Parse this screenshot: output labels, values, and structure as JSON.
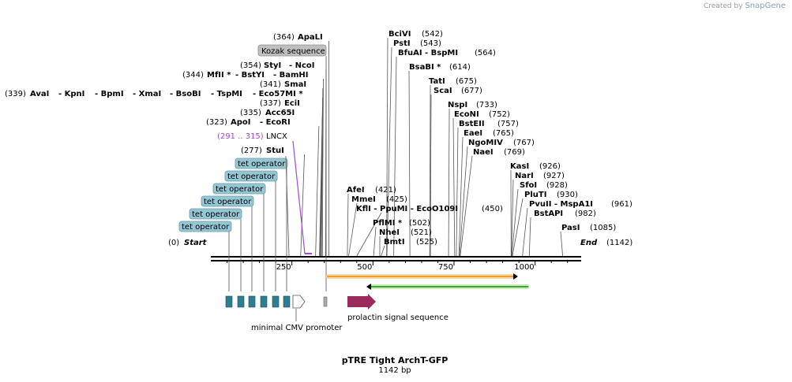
{
  "brand": {
    "prefix": "Created by",
    "name": "SnapGene"
  },
  "map": {
    "name": "pTRE Tight ArchT-GFP",
    "length_label": "1142 bp",
    "ruler": [
      {
        "label": "250",
        "pos": 250
      },
      {
        "label": "500",
        "pos": 500
      },
      {
        "label": "750",
        "pos": 750
      },
      {
        "label": "1000",
        "pos": 1000
      }
    ],
    "start_label": "Start",
    "start_pos": "(0)",
    "end_label": "End",
    "end_pos": "(1142)"
  },
  "sites_left": [
    {
      "row": 0,
      "pos": "(364)",
      "names": [
        "ApaLI"
      ],
      "bp": 364
    },
    {
      "row": 2,
      "pos": "(354)",
      "names": [
        "StyI",
        "- NcoI"
      ],
      "bp": 354
    },
    {
      "row": 3,
      "pos": "(344)",
      "names": [
        "MfII *",
        "- BstYI",
        "- BamHI"
      ],
      "bp": 344
    },
    {
      "row": 4,
      "pos": "(341)",
      "names": [
        "SmaI"
      ],
      "bp": 341
    },
    {
      "row": 5,
      "pos": "(339)",
      "names": [
        "AvaI",
        "- KpnI",
        "- BpmI",
        "- XmaI",
        "- BsoBI",
        "- TspMI",
        "- Eco57MI *"
      ],
      "bp": 339
    },
    {
      "row": 6,
      "pos": "(337)",
      "names": [
        "EciI"
      ],
      "bp": 337
    },
    {
      "row": 7,
      "pos": "(335)",
      "names": [
        "Acc65I"
      ],
      "bp": 335
    },
    {
      "row": 8,
      "pos": "(323)",
      "names": [
        "ApoI",
        "- EcoRI"
      ],
      "bp": 323
    },
    {
      "row": 10,
      "pos": "(277)",
      "names": [
        "StuI"
      ],
      "bp": 277
    }
  ],
  "lncx": {
    "pos": "(291 .. 315)",
    "name": "LNCX"
  },
  "kozak": "Kozak sequence",
  "tet_operators": [
    "tet operator",
    "tet operator",
    "tet operator",
    "tet operator",
    "tet operator",
    "tet operator"
  ],
  "sites_right": [
    {
      "name": "BciVI",
      "pos": "(542)",
      "bp": 542
    },
    {
      "name": "PstI",
      "pos": "(543)",
      "bp": 543
    },
    {
      "name": "BfuAI - BspMI",
      "pos": "(564)",
      "bp": 564
    },
    {
      "name": "BsaBI *",
      "pos": "(614)",
      "bp": 614
    },
    {
      "name": "TatI",
      "pos": "(675)",
      "bp": 675
    },
    {
      "name": "ScaI",
      "pos": "(677)",
      "bp": 677
    },
    {
      "name": "NspI",
      "pos": "(733)",
      "bp": 733
    },
    {
      "name": "EcoNI",
      "pos": "(752)",
      "bp": 752
    },
    {
      "name": "BstEII",
      "pos": "(757)",
      "bp": 757
    },
    {
      "name": "EaeI",
      "pos": "(765)",
      "bp": 765
    },
    {
      "name": "NgoMIV",
      "pos": "(767)",
      "bp": 767
    },
    {
      "name": "NaeI",
      "pos": "(769)",
      "bp": 769
    },
    {
      "name": "KasI",
      "pos": "(926)",
      "bp": 926
    },
    {
      "name": "NarI",
      "pos": "(927)",
      "bp": 927
    },
    {
      "name": "SfoI",
      "pos": "(928)",
      "bp": 928
    },
    {
      "name": "PluTI",
      "pos": "(930)",
      "bp": 930
    },
    {
      "name": "PvuII - MspA1I",
      "pos": "(961)",
      "bp": 961
    },
    {
      "name": "BstAPI",
      "pos": "(982)",
      "bp": 982
    },
    {
      "name": "PasI",
      "pos": "(1085)",
      "bp": 1085
    }
  ],
  "sites_mid": [
    {
      "name": "AfeI",
      "pos": "(421)",
      "bp": 421
    },
    {
      "name": "MmeI",
      "pos": "(425)",
      "bp": 425
    },
    {
      "name": "KflI - PpuMI - EcoO109I",
      "pos": "(450)",
      "bp": 450
    },
    {
      "name": "PflMI *",
      "pos": "(502)",
      "bp": 502
    },
    {
      "name": "NheI",
      "pos": "(521)",
      "bp": 521
    },
    {
      "name": "BmtI",
      "pos": "(525)",
      "bp": 525
    }
  ],
  "features": {
    "minimal_cmv": "minimal CMV promoter",
    "prolactin": "prolactin signal sequence"
  },
  "colors": {
    "tet_block": "#2e7d91",
    "prolactin": "#9c2a5a",
    "orange_arrow": "#f0a030",
    "green_arrow": "#3aa830"
  }
}
